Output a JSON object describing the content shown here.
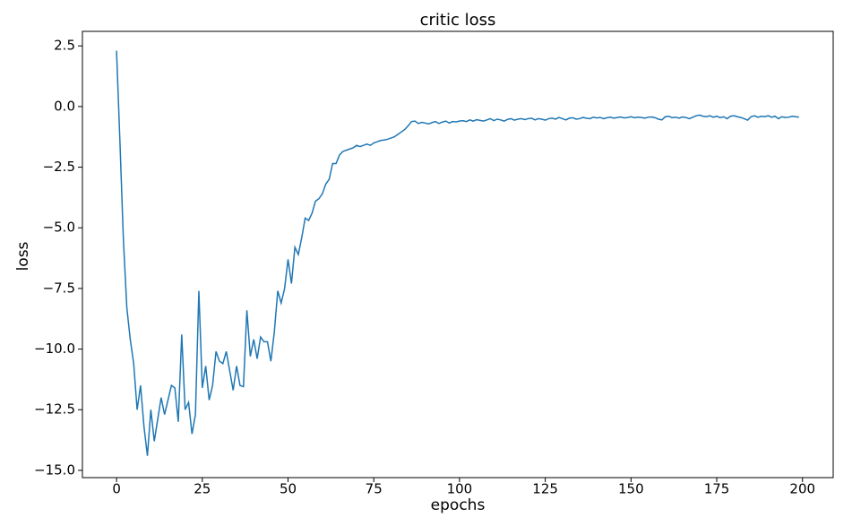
{
  "chart_data": {
    "type": "line",
    "title": "critic loss",
    "x_label": "epochs",
    "y_label": "loss",
    "series": [
      {
        "name": "critic loss",
        "color": "#1f77b4",
        "values": [
          2.3,
          -1.5,
          -5.5,
          -8.3,
          -9.6,
          -10.6,
          -12.5,
          -11.5,
          -13.2,
          -14.4,
          -12.5,
          -13.8,
          -12.9,
          -12.0,
          -12.7,
          -12.1,
          -11.5,
          -11.6,
          -13.0,
          -9.4,
          -12.5,
          -12.2,
          -13.5,
          -12.7,
          -7.6,
          -11.6,
          -10.7,
          -12.1,
          -11.5,
          -10.1,
          -10.5,
          -10.6,
          -10.1,
          -10.9,
          -11.7,
          -10.7,
          -11.5,
          -11.55,
          -8.4,
          -10.3,
          -9.6,
          -10.4,
          -9.5,
          -9.7,
          -9.7,
          -10.5,
          -9.3,
          -7.6,
          -8.1,
          -7.5,
          -6.3,
          -7.3,
          -5.8,
          -6.1,
          -5.4,
          -4.6,
          -4.7,
          -4.4,
          -3.9,
          -3.8,
          -3.6,
          -3.2,
          -3.0,
          -2.35,
          -2.35,
          -2.0,
          -1.85,
          -1.8,
          -1.75,
          -1.7,
          -1.6,
          -1.65,
          -1.6,
          -1.55,
          -1.6,
          -1.5,
          -1.45,
          -1.4,
          -1.38,
          -1.35,
          -1.3,
          -1.25,
          -1.15,
          -1.05,
          -0.95,
          -0.8,
          -0.62,
          -0.6,
          -0.7,
          -0.65,
          -0.68,
          -0.72,
          -0.66,
          -0.62,
          -0.7,
          -0.64,
          -0.6,
          -0.68,
          -0.62,
          -0.63,
          -0.6,
          -0.58,
          -0.62,
          -0.55,
          -0.6,
          -0.54,
          -0.57,
          -0.6,
          -0.55,
          -0.5,
          -0.58,
          -0.52,
          -0.55,
          -0.6,
          -0.53,
          -0.5,
          -0.56,
          -0.52,
          -0.5,
          -0.54,
          -0.5,
          -0.48,
          -0.55,
          -0.5,
          -0.52,
          -0.56,
          -0.5,
          -0.48,
          -0.52,
          -0.45,
          -0.5,
          -0.55,
          -0.48,
          -0.46,
          -0.52,
          -0.5,
          -0.45,
          -0.48,
          -0.5,
          -0.44,
          -0.47,
          -0.45,
          -0.5,
          -0.46,
          -0.44,
          -0.48,
          -0.45,
          -0.43,
          -0.47,
          -0.45,
          -0.42,
          -0.46,
          -0.44,
          -0.45,
          -0.48,
          -0.44,
          -0.43,
          -0.46,
          -0.52,
          -0.55,
          -0.42,
          -0.4,
          -0.46,
          -0.44,
          -0.48,
          -0.43,
          -0.45,
          -0.5,
          -0.44,
          -0.38,
          -0.35,
          -0.4,
          -0.42,
          -0.38,
          -0.44,
          -0.4,
          -0.46,
          -0.42,
          -0.5,
          -0.4,
          -0.38,
          -0.42,
          -0.45,
          -0.5,
          -0.56,
          -0.42,
          -0.38,
          -0.44,
          -0.4,
          -0.42,
          -0.38,
          -0.44,
          -0.4,
          -0.5,
          -0.42,
          -0.45,
          -0.44,
          -0.4,
          -0.42,
          -0.44
        ]
      }
    ],
    "xlim": [
      -9.95,
      208.95
    ],
    "ylim": [
      -15.3,
      3.1
    ],
    "xticks": [
      0,
      25,
      50,
      75,
      100,
      125,
      150,
      175,
      200
    ],
    "yticks": [
      {
        "value": -15,
        "label": "−15.0"
      },
      {
        "value": -12.5,
        "label": "−12.5"
      },
      {
        "value": -10,
        "label": "−10.0"
      },
      {
        "value": -7.5,
        "label": "−7.5"
      },
      {
        "value": -5,
        "label": "−5.0"
      },
      {
        "value": -2.5,
        "label": "−2.5"
      },
      {
        "value": 0,
        "label": "0.0"
      },
      {
        "value": 2.5,
        "label": "2.5"
      }
    ]
  }
}
